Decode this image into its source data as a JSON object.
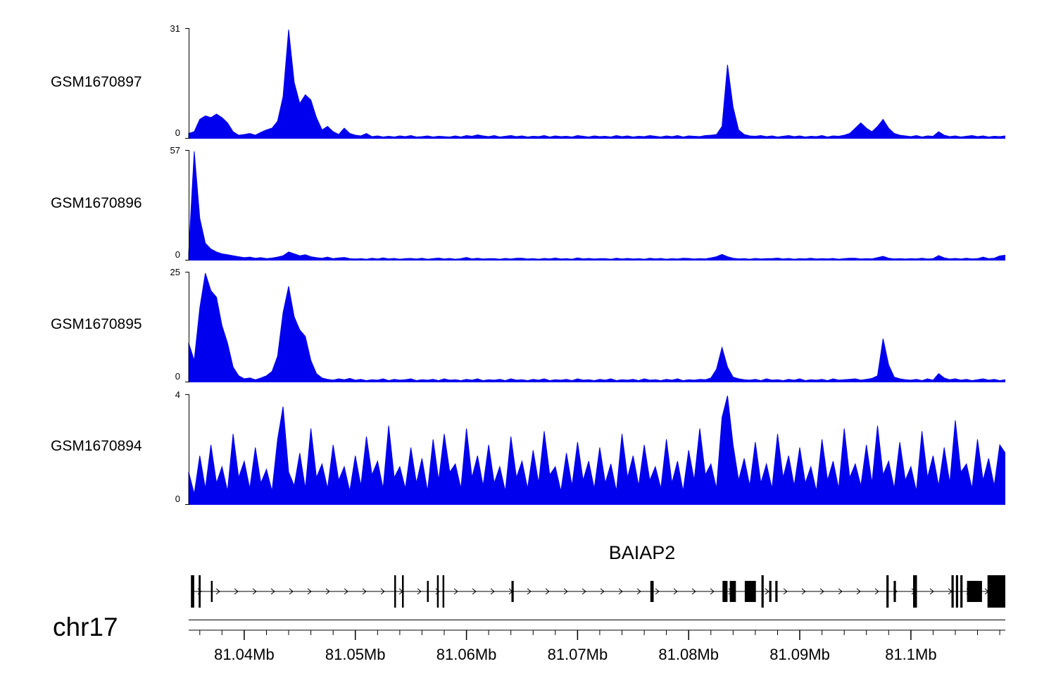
{
  "chart_data": {
    "type": "area",
    "title": "",
    "legend": "none",
    "grid": false,
    "region": {
      "chrom_label": "chr17",
      "start": 81035000,
      "end": 81108500,
      "step": 500
    },
    "x_axis": {
      "minor_step": 2000,
      "major_ticks": [
        81040000,
        81050000,
        81060000,
        81070000,
        81080000,
        81090000,
        81100000
      ],
      "major_labels": [
        "81.04Mb",
        "81.05Mb",
        "81.06Mb",
        "81.07Mb",
        "81.08Mb",
        "81.09Mb",
        "81.1Mb"
      ]
    },
    "tracks": [
      {
        "name": "GSM1670897",
        "ymax": 31,
        "ymax_label": "31",
        "ymin_label": "0",
        "color": "#0000EE",
        "values": [
          1.5,
          2,
          5.5,
          6.5,
          6,
          7,
          6,
          4.5,
          2,
          1,
          1.2,
          1.5,
          1,
          1.8,
          2.5,
          3,
          5,
          12,
          31,
          16,
          10,
          12.5,
          11,
          6,
          2.5,
          3.5,
          2,
          1.2,
          3,
          1.5,
          1,
          0.8,
          1.5,
          0.6,
          0.8,
          0.5,
          0.7,
          0.5,
          0.8,
          0.6,
          0.9,
          0.5,
          0.6,
          0.8,
          0.5,
          0.7,
          0.6,
          0.5,
          0.8,
          0.5,
          0.9,
          0.7,
          1.1,
          0.8,
          0.6,
          0.9,
          0.5,
          0.7,
          0.9,
          0.6,
          0.8,
          0.5,
          0.7,
          0.6,
          0.9,
          0.5,
          0.8,
          0.6,
          0.7,
          0.5,
          0.9,
          0.7,
          0.5,
          0.8,
          0.6,
          0.7,
          0.5,
          0.9,
          0.6,
          0.8,
          0.5,
          0.7,
          0.6,
          0.9,
          0.7,
          0.5,
          0.8,
          0.6,
          0.9,
          0.5,
          0.8,
          0.7,
          0.6,
          0.9,
          1,
          1.2,
          3.5,
          21,
          9,
          2.5,
          1.2,
          0.8,
          0.7,
          0.9,
          0.6,
          0.8,
          0.5,
          0.7,
          0.9,
          0.6,
          0.8,
          0.5,
          0.7,
          0.6,
          0.9,
          0.5,
          0.8,
          0.7,
          1,
          1.5,
          3,
          4.5,
          3,
          2,
          3.5,
          5.5,
          3,
          1.5,
          1,
          0.8,
          0.6,
          0.9,
          0.5,
          0.8,
          0.7,
          2,
          1,
          0.6,
          0.8,
          0.5,
          0.7,
          0.9,
          0.6,
          0.8,
          0.5,
          0.7,
          0.6,
          0.8
        ]
      },
      {
        "name": "GSM1670896",
        "ymax": 57,
        "ymax_label": "57",
        "ymin_label": "0",
        "color": "#0000EE",
        "values": [
          4,
          57,
          22,
          9,
          6,
          4.5,
          3.5,
          3,
          2.5,
          2,
          1.5,
          1.8,
          1.2,
          1.5,
          1,
          1.3,
          1.8,
          2.5,
          4.5,
          3.5,
          2.5,
          3,
          2,
          1.5,
          1.2,
          1.8,
          1,
          1.4,
          1.6,
          1,
          0.8,
          1,
          0.7,
          1.2,
          0.8,
          1.4,
          0.9,
          1.1,
          0.7,
          1,
          1.1,
          0.8,
          1.2,
          0.7,
          1,
          1.3,
          0.8,
          1.1,
          0.7,
          1,
          1.6,
          0.9,
          1.2,
          0.8,
          1,
          1,
          0.7,
          1.1,
          0.8,
          1.2,
          1.2,
          0.8,
          1,
          0.7,
          1.1,
          0.9,
          1.3,
          0.8,
          1,
          0.7,
          1.4,
          0.9,
          1.1,
          0.8,
          1,
          1,
          0.7,
          1.2,
          0.8,
          1.1,
          0.8,
          1,
          0.7,
          1.2,
          0.9,
          1.1,
          0.7,
          1,
          0.8,
          1.2,
          1.1,
          0.8,
          1,
          0.9,
          1.4,
          2,
          3.2,
          2,
          1.2,
          0.9,
          1,
          0.7,
          1.1,
          0.8,
          1,
          1,
          1.3,
          0.8,
          1.1,
          0.7,
          1,
          0.9,
          1.2,
          0.8,
          1,
          0.9,
          1.1,
          0.7,
          1,
          1.2,
          1.2,
          0.8,
          1,
          0.9,
          1.5,
          2.2,
          1.2,
          0.9,
          1,
          0.8,
          1,
          0.9,
          1.2,
          0.8,
          1,
          2.6,
          1.4,
          0.9,
          1.1,
          0.8,
          1.2,
          0.9,
          1,
          1.8,
          1,
          1.2,
          2.4,
          2.8
        ]
      },
      {
        "name": "GSM1670895",
        "ymax": 25,
        "ymax_label": "25",
        "ymin_label": "0",
        "color": "#0000EE",
        "values": [
          9,
          5,
          17,
          25,
          21,
          19.5,
          13,
          9,
          3.5,
          1.5,
          0.8,
          1,
          0.6,
          1,
          1.5,
          2.5,
          6,
          16,
          22,
          15,
          12,
          10.5,
          5,
          2,
          1,
          0.7,
          0.5,
          0.8,
          0.6,
          0.9,
          0.5,
          0.7,
          0.4,
          0.6,
          0.5,
          0.8,
          0.4,
          0.7,
          0.5,
          0.6,
          0.8,
          0.4,
          0.6,
          0.5,
          0.7,
          0.4,
          0.8,
          0.5,
          0.6,
          0.4,
          0.7,
          0.5,
          0.8,
          0.4,
          0.6,
          0.5,
          0.7,
          0.4,
          0.8,
          0.5,
          0.6,
          0.4,
          0.7,
          0.5,
          0.8,
          0.4,
          0.6,
          0.5,
          0.7,
          0.4,
          0.8,
          0.5,
          0.6,
          0.4,
          0.7,
          0.5,
          0.8,
          0.4,
          0.6,
          0.5,
          0.7,
          0.4,
          0.8,
          0.5,
          0.6,
          0.4,
          0.7,
          0.5,
          0.8,
          0.4,
          0.6,
          0.5,
          0.7,
          0.6,
          1,
          3,
          8,
          3.5,
          1.2,
          0.8,
          0.6,
          0.5,
          0.7,
          0.4,
          0.8,
          0.5,
          0.6,
          0.4,
          0.7,
          0.5,
          0.8,
          0.4,
          0.6,
          0.5,
          0.7,
          0.4,
          0.8,
          0.5,
          0.6,
          0.7,
          0.8,
          0.5,
          0.7,
          0.9,
          1.5,
          10,
          4,
          1.2,
          0.8,
          0.6,
          0.5,
          0.7,
          0.4,
          0.8,
          0.5,
          2,
          1,
          0.6,
          0.8,
          0.5,
          0.7,
          0.4,
          0.6,
          0.8,
          0.5,
          0.7,
          0.4,
          0.6
        ]
      },
      {
        "name": "GSM1670894",
        "ymax": 4,
        "ymax_label": "4",
        "ymin_label": "0",
        "color": "#0000EE",
        "values": [
          1.2,
          0.4,
          1.8,
          0.6,
          2.2,
          0.8,
          1.4,
          0.5,
          2.6,
          1,
          1.6,
          0.6,
          2.1,
          0.8,
          1.3,
          0.5,
          2.4,
          3.6,
          1.2,
          0.7,
          1.9,
          0.6,
          2.8,
          1,
          1.5,
          0.6,
          2.2,
          0.9,
          1.4,
          0.5,
          1.8,
          0.7,
          2.5,
          1.1,
          1.6,
          0.6,
          2.9,
          1,
          1.4,
          0.6,
          2.1,
          0.8,
          1.7,
          0.5,
          2.4,
          0.9,
          2.6,
          1.2,
          1.5,
          0.6,
          2.8,
          1,
          1.8,
          0.7,
          2.2,
          0.8,
          1.4,
          0.5,
          2.5,
          1,
          1.6,
          0.6,
          2,
          0.8,
          2.7,
          1.1,
          1.4,
          0.5,
          1.9,
          0.7,
          2.3,
          0.9,
          1.6,
          0.6,
          2.1,
          0.8,
          1.5,
          0.5,
          2.6,
          1,
          1.8,
          0.7,
          2.2,
          0.9,
          1.4,
          0.6,
          2.4,
          0.8,
          1.6,
          0.5,
          2,
          0.9,
          2.8,
          1.1,
          1.5,
          0.6,
          3.2,
          4,
          2.2,
          0.9,
          1.7,
          0.7,
          2.3,
          0.8,
          1.5,
          0.6,
          2.6,
          1,
          1.8,
          0.7,
          2.1,
          0.8,
          1.4,
          0.5,
          2.4,
          0.9,
          1.6,
          0.6,
          2.8,
          1,
          1.5,
          0.7,
          2.2,
          0.8,
          2.9,
          1.1,
          1.6,
          0.6,
          2.3,
          0.9,
          1.4,
          0.5,
          2.7,
          1,
          1.8,
          0.7,
          2.1,
          0.8,
          3.1,
          1.2,
          1.5,
          0.6,
          2.4,
          0.9,
          1.7,
          0.7,
          2.2,
          1.9
        ]
      }
    ],
    "gene_track": {
      "name": "BAIAP2",
      "strand": "+",
      "exons": [
        [
          81035200,
          81035500,
          "t"
        ],
        [
          81035900,
          81036080,
          "t"
        ],
        [
          81037000,
          81037160,
          "n"
        ],
        [
          81053500,
          81053660,
          "t"
        ],
        [
          81054200,
          81054360,
          "t"
        ],
        [
          81056450,
          81056600,
          "n"
        ],
        [
          81057350,
          81057500,
          "t"
        ],
        [
          81057850,
          81058000,
          "t"
        ],
        [
          81064050,
          81064250,
          "n"
        ],
        [
          81076550,
          81076850,
          "n"
        ],
        [
          81083050,
          81083500,
          "n"
        ],
        [
          81083700,
          81084250,
          "n"
        ],
        [
          81085050,
          81086050,
          "n"
        ],
        [
          81086550,
          81086750,
          "t"
        ],
        [
          81087250,
          81087450,
          "n"
        ],
        [
          81087800,
          81088000,
          "n"
        ],
        [
          81097800,
          81098000,
          "t"
        ],
        [
          81098450,
          81098650,
          "n"
        ],
        [
          81100200,
          81100550,
          "t"
        ],
        [
          81103650,
          81103850,
          "t"
        ],
        [
          81104050,
          81104250,
          "t"
        ],
        [
          81104450,
          81104650,
          "t"
        ],
        [
          81105050,
          81106400,
          "n"
        ],
        [
          81106900,
          81108500,
          "t"
        ]
      ]
    }
  }
}
